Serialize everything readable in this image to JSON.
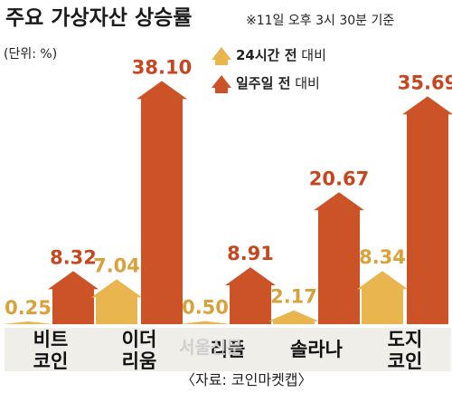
{
  "header": {
    "title": "주요 가상자산 상승률",
    "subtitle": "※11일 오후 3시 30분 기준",
    "unit": "(단위: %)"
  },
  "legend": {
    "day_bold": "24시간 전",
    "day_rest": " 대비",
    "week_bold": "일주일 전",
    "week_rest": " 대비"
  },
  "source": "〈자료: 코인마켓캡〉",
  "watermark": "서울신문",
  "colors": {
    "day": "#e8b54f",
    "week": "#cc5327",
    "day_label": "#d9a13a",
    "week_label": "#c6471f",
    "cat_box": "#f0eee8"
  },
  "chart_data": {
    "type": "bar",
    "title": "주요 가상자산 상승률",
    "subtitle": "※11일 오후 3시 30분 기준",
    "unit": "%",
    "categories": [
      [
        "비트",
        "코인"
      ],
      [
        "이더",
        "리움"
      ],
      [
        "리플"
      ],
      [
        "솔라나"
      ],
      [
        "도지",
        "코인"
      ]
    ],
    "series": [
      {
        "name": "24시간 전 대비",
        "values": [
          0.25,
          7.04,
          0.5,
          2.17,
          8.34
        ],
        "labels": [
          "0.25",
          "7.04",
          "0.50",
          "2.17",
          "8.34"
        ]
      },
      {
        "name": "일주일 전 대비",
        "values": [
          8.32,
          38.1,
          8.91,
          20.67,
          35.69
        ],
        "labels": [
          "8.32",
          "38.10",
          "8.91",
          "20.67",
          "35.69"
        ]
      }
    ],
    "legend_position": "top-center",
    "grid": false,
    "ylim": [
      0,
      40
    ],
    "source": "코인마켓캡"
  }
}
